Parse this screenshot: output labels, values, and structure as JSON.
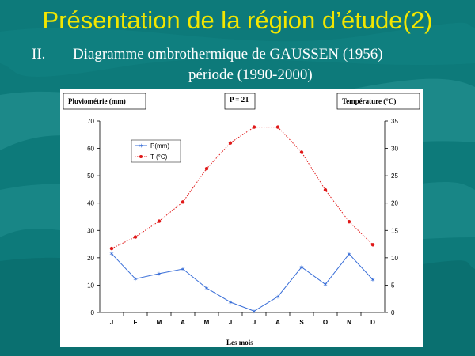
{
  "slide": {
    "title": "Présentation de la région d’étude(2)",
    "subtitle_number": "II.",
    "subtitle_line1": "Diagramme ombrothermique de GAUSSEN (1956)",
    "subtitle_line2": "période (1990-2000)"
  },
  "colors": {
    "background": "#0d7a7a",
    "title": "#f2e600",
    "precip_series": "#3a6fd8",
    "temp_series": "#e01818"
  },
  "chart_data": {
    "type": "line",
    "title": "P = 2T",
    "xlabel": "Les mois",
    "ylabel_left": "Pluviométrie (mm)",
    "ylabel_right": "Température (°C)",
    "categories": [
      "J",
      "F",
      "M",
      "A",
      "M",
      "J",
      "J",
      "A",
      "S",
      "O",
      "N",
      "D"
    ],
    "ylim_left": [
      0,
      70
    ],
    "ylim_right": [
      0,
      35
    ],
    "yticks_left": [
      "0",
      "10",
      "20",
      "30",
      "40",
      "50",
      "60",
      "70"
    ],
    "yticks_right": [
      "0",
      "5",
      "10",
      "15",
      "20",
      "25",
      "30",
      "35"
    ],
    "legend_position": "upper-left",
    "series": [
      {
        "name": "P(mm)",
        "axis": "left",
        "color": "#3a6fd8",
        "marker": "star",
        "values": [
          21.5,
          12.3,
          14.2,
          15.9,
          8.9,
          3.8,
          0.5,
          5.8,
          16.6,
          10.3,
          21.4,
          12.0
        ]
      },
      {
        "name": "T (°C)",
        "axis": "right",
        "color": "#e01818",
        "marker": "circle",
        "values": [
          11.7,
          13.8,
          16.7,
          20.2,
          26.3,
          31.0,
          33.9,
          33.9,
          29.3,
          22.4,
          16.6,
          12.4
        ]
      }
    ]
  }
}
